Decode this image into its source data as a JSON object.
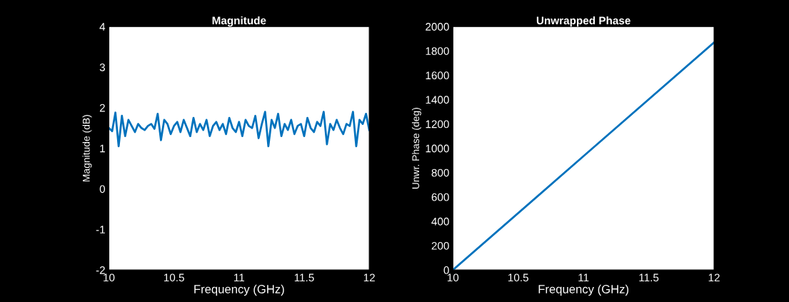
{
  "chart_data": [
    {
      "type": "line",
      "title": "Magnitude",
      "xlabel": "Frequency (GHz)",
      "ylabel": "Magnitude (dB)",
      "xlim": [
        10,
        12
      ],
      "xticks": [
        10,
        10.5,
        11,
        11.5,
        12
      ],
      "ylim": [
        -2,
        4
      ],
      "yticks": [
        -2,
        -1,
        0,
        1,
        2,
        3,
        4
      ],
      "grid": false,
      "legend": false,
      "series": [
        {
          "color": "#0072bd",
          "x": [
            10,
            10.025,
            10.05,
            10.075,
            10.1,
            10.125,
            10.15,
            10.175,
            10.2,
            10.225,
            10.25,
            10.275,
            10.3,
            10.325,
            10.35,
            10.375,
            10.4,
            10.425,
            10.45,
            10.475,
            10.5,
            10.525,
            10.55,
            10.575,
            10.6,
            10.625,
            10.65,
            10.675,
            10.7,
            10.725,
            10.75,
            10.775,
            10.8,
            10.825,
            10.85,
            10.875,
            10.9,
            10.925,
            10.95,
            10.975,
            11,
            11.025,
            11.05,
            11.075,
            11.1,
            11.125,
            11.15,
            11.175,
            11.2,
            11.225,
            11.25,
            11.275,
            11.3,
            11.325,
            11.35,
            11.375,
            11.4,
            11.425,
            11.45,
            11.475,
            11.5,
            11.525,
            11.55,
            11.575,
            11.6,
            11.625,
            11.65,
            11.675,
            11.7,
            11.725,
            11.75,
            11.775,
            11.8,
            11.825,
            11.85,
            11.875,
            11.9,
            11.925,
            11.95,
            11.975,
            12
          ],
          "values": [
            1.5,
            1.42,
            1.88,
            1.05,
            1.8,
            1.3,
            1.7,
            1.55,
            1.4,
            1.6,
            1.5,
            1.45,
            1.55,
            1.6,
            1.48,
            1.85,
            1.2,
            1.7,
            1.6,
            1.35,
            1.55,
            1.65,
            1.4,
            1.7,
            1.5,
            1.3,
            1.75,
            1.4,
            1.6,
            1.45,
            1.7,
            1.3,
            1.55,
            1.65,
            1.45,
            1.6,
            1.35,
            1.75,
            1.5,
            1.4,
            1.65,
            1.3,
            1.7,
            1.55,
            1.5,
            1.8,
            1.25,
            1.6,
            1.9,
            1.05,
            1.7,
            1.5,
            1.85,
            1.3,
            1.6,
            1.45,
            1.7,
            1.35,
            1.55,
            1.6,
            1.3,
            1.75,
            1.5,
            1.4,
            1.65,
            1.55,
            1.9,
            1.1,
            1.6,
            1.45,
            1.7,
            1.5,
            1.35,
            1.6,
            1.55,
            1.9,
            1.05,
            1.7,
            1.6,
            1.85,
            1.45
          ]
        }
      ]
    },
    {
      "type": "line",
      "title": "Unwrapped Phase",
      "xlabel": "Frequency (GHz)",
      "ylabel": "Unwr. Phase (deg)",
      "xlim": [
        10,
        12
      ],
      "xticks": [
        10,
        10.5,
        11,
        11.5,
        12
      ],
      "ylim": [
        0,
        2000
      ],
      "yticks": [
        0,
        200,
        400,
        600,
        800,
        1000,
        1200,
        1400,
        1600,
        1800,
        2000
      ],
      "grid": false,
      "legend": false,
      "series": [
        {
          "color": "#0072bd",
          "x": [
            10,
            11,
            12
          ],
          "values": [
            0,
            935,
            1870
          ]
        }
      ]
    }
  ]
}
